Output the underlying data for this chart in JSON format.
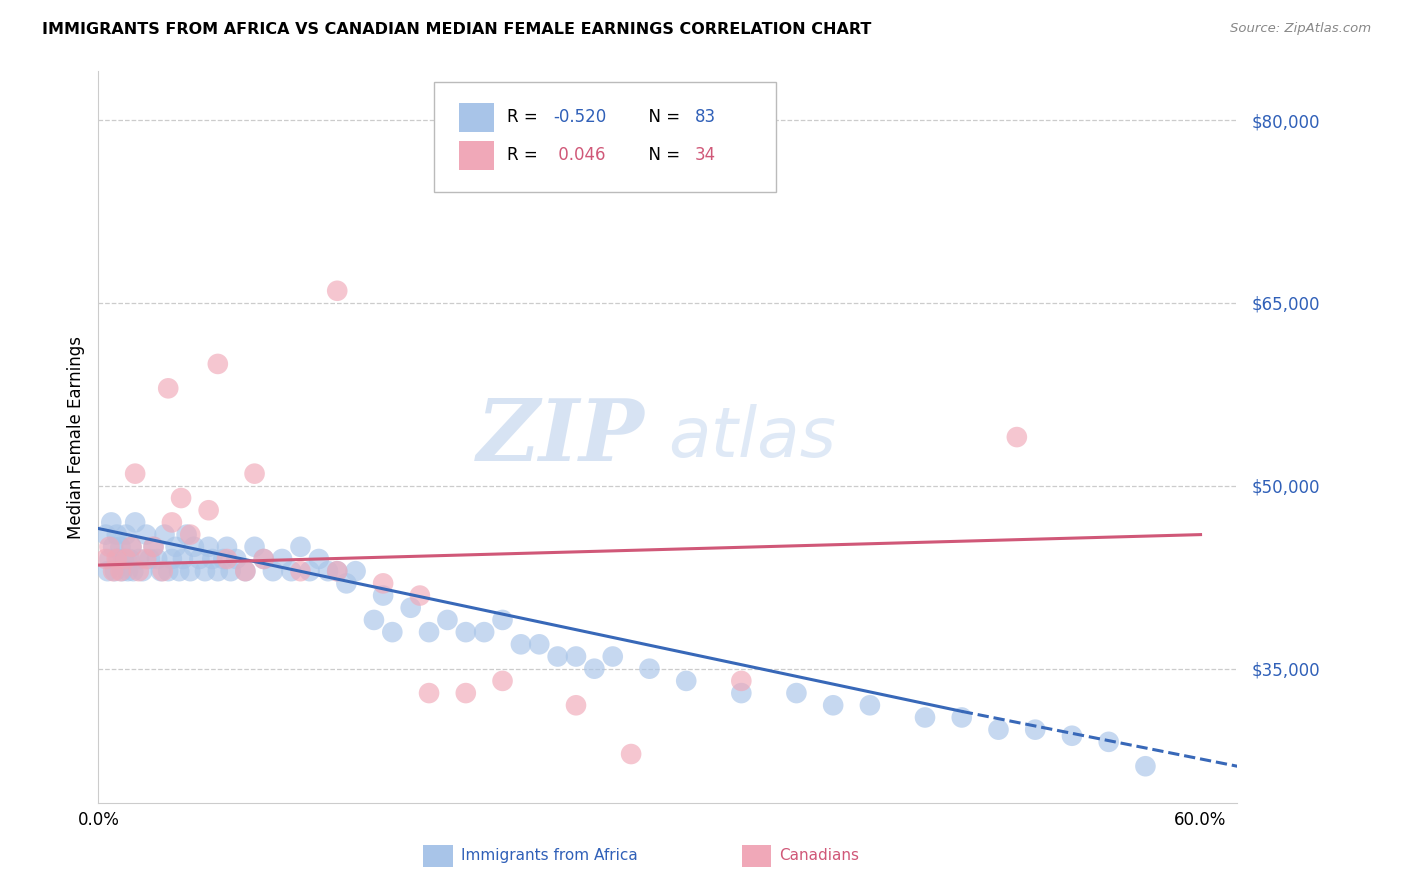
{
  "title": "IMMIGRANTS FROM AFRICA VS CANADIAN MEDIAN FEMALE EARNINGS CORRELATION CHART",
  "source": "Source: ZipAtlas.com",
  "ylabel": "Median Female Earnings",
  "xlim": [
    0.0,
    0.62
  ],
  "ylim": [
    24000,
    84000
  ],
  "ytick_vals": [
    35000,
    50000,
    65000,
    80000
  ],
  "ytick_labels": [
    "$35,000",
    "$50,000",
    "$65,000",
    "$80,000"
  ],
  "xtick_vals": [
    0.0,
    0.1,
    0.2,
    0.3,
    0.4,
    0.5,
    0.6
  ],
  "xtick_labels": [
    "0.0%",
    "",
    "",
    "",
    "",
    "",
    "60.0%"
  ],
  "blue_color": "#a8c4e8",
  "pink_color": "#f0a8b8",
  "trend_blue_color": "#3868b8",
  "trend_pink_color": "#d05878",
  "watermark_zip_color": "#b8cce8",
  "watermark_atlas_color": "#c8d8ec",
  "blue_scatter_x": [
    0.004,
    0.005,
    0.006,
    0.007,
    0.008,
    0.009,
    0.01,
    0.011,
    0.012,
    0.013,
    0.014,
    0.015,
    0.016,
    0.017,
    0.018,
    0.019,
    0.02,
    0.022,
    0.024,
    0.026,
    0.028,
    0.03,
    0.032,
    0.034,
    0.036,
    0.038,
    0.04,
    0.042,
    0.044,
    0.046,
    0.048,
    0.05,
    0.052,
    0.055,
    0.058,
    0.06,
    0.062,
    0.065,
    0.068,
    0.07,
    0.072,
    0.075,
    0.08,
    0.085,
    0.09,
    0.095,
    0.1,
    0.105,
    0.11,
    0.115,
    0.12,
    0.125,
    0.13,
    0.135,
    0.14,
    0.15,
    0.155,
    0.16,
    0.17,
    0.18,
    0.19,
    0.2,
    0.21,
    0.22,
    0.23,
    0.24,
    0.25,
    0.26,
    0.27,
    0.28,
    0.3,
    0.32,
    0.35,
    0.38,
    0.4,
    0.42,
    0.45,
    0.47,
    0.49,
    0.51,
    0.53,
    0.55,
    0.57
  ],
  "blue_scatter_y": [
    46000,
    43000,
    44000,
    47000,
    45000,
    43000,
    46000,
    44000,
    45000,
    43000,
    44000,
    46000,
    43000,
    44000,
    45000,
    43000,
    47000,
    44000,
    43000,
    46000,
    44000,
    45000,
    44000,
    43000,
    46000,
    43000,
    44000,
    45000,
    43000,
    44000,
    46000,
    43000,
    45000,
    44000,
    43000,
    45000,
    44000,
    43000,
    44000,
    45000,
    43000,
    44000,
    43000,
    45000,
    44000,
    43000,
    44000,
    43000,
    45000,
    43000,
    44000,
    43000,
    43000,
    42000,
    43000,
    39000,
    41000,
    38000,
    40000,
    38000,
    39000,
    38000,
    38000,
    39000,
    37000,
    37000,
    36000,
    36000,
    35000,
    36000,
    35000,
    34000,
    33000,
    33000,
    32000,
    32000,
    31000,
    31000,
    30000,
    30000,
    29500,
    29000,
    27000
  ],
  "pink_scatter_x": [
    0.004,
    0.006,
    0.008,
    0.01,
    0.012,
    0.015,
    0.018,
    0.022,
    0.026,
    0.03,
    0.035,
    0.04,
    0.045,
    0.05,
    0.06,
    0.07,
    0.08,
    0.09,
    0.11,
    0.13,
    0.155,
    0.175,
    0.2,
    0.22,
    0.26,
    0.29,
    0.35,
    0.02,
    0.038,
    0.065,
    0.085,
    0.13,
    0.18,
    0.5
  ],
  "pink_scatter_y": [
    44000,
    45000,
    43000,
    44000,
    43000,
    44000,
    45000,
    43000,
    44000,
    45000,
    43000,
    47000,
    49000,
    46000,
    48000,
    44000,
    43000,
    44000,
    43000,
    43000,
    42000,
    41000,
    33000,
    34000,
    32000,
    28000,
    34000,
    51000,
    58000,
    60000,
    51000,
    66000,
    33000,
    54000
  ],
  "legend_blue_r": "-0.520",
  "legend_blue_n": "83",
  "legend_pink_r": "0.046",
  "legend_pink_n": "34",
  "trend_blue_x0": 0.0,
  "trend_blue_y0": 46500,
  "trend_blue_x1": 0.47,
  "trend_blue_y1": 31500,
  "trend_blue_dash_x1": 0.62,
  "trend_blue_dash_y1": 27000,
  "trend_pink_x0": 0.0,
  "trend_pink_y0": 43500,
  "trend_pink_x1": 0.6,
  "trend_pink_y1": 46000
}
